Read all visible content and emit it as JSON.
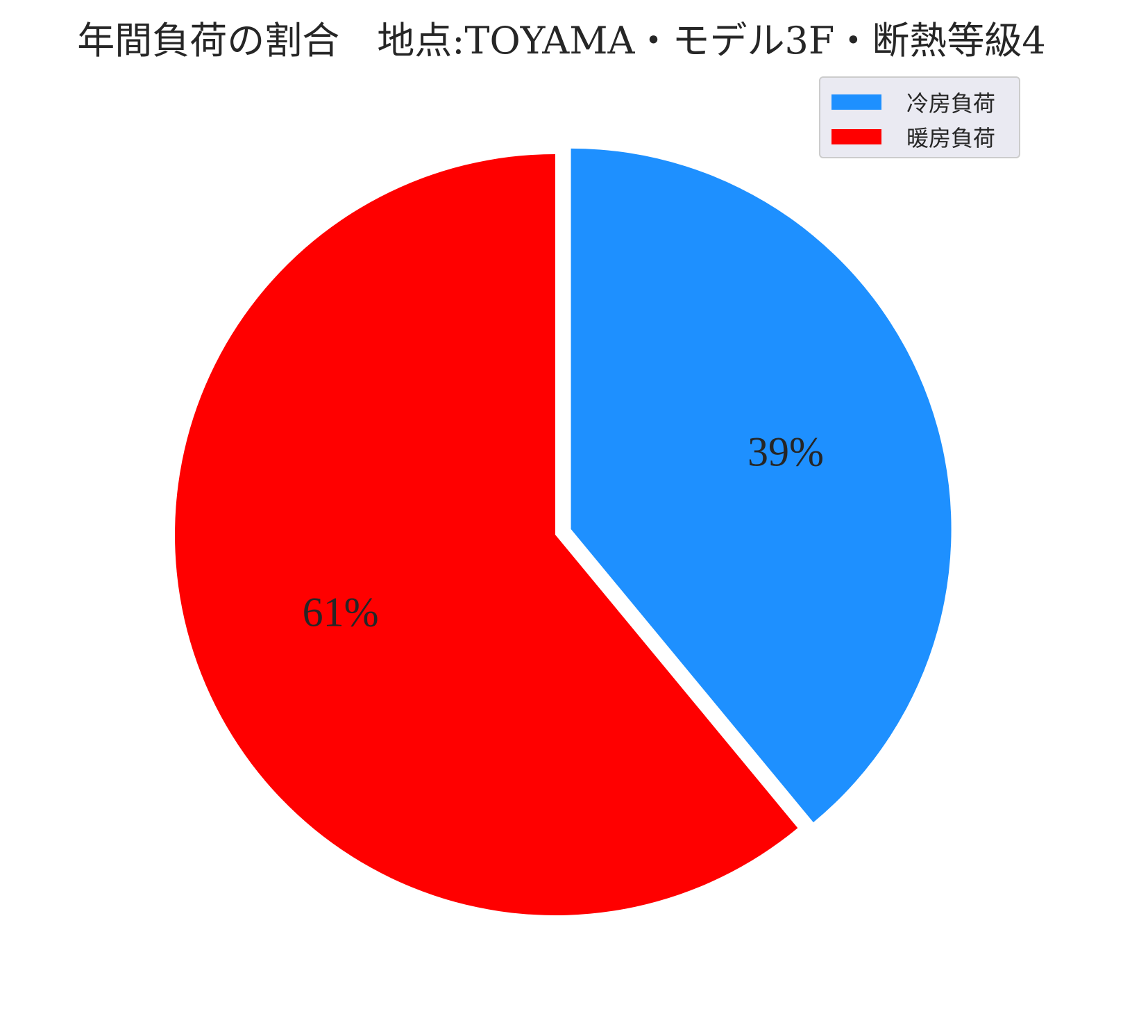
{
  "chart_data": {
    "type": "pie",
    "title": "年間負荷の割合　地点:TOYAMA・モデル3F・断熱等級4",
    "slices": [
      {
        "name": "冷房負荷",
        "value": 39,
        "label": "39%",
        "color": "#1e90ff",
        "exploded": true
      },
      {
        "name": "暖房負荷",
        "value": 61,
        "label": "61%",
        "color": "#ff0000",
        "exploded": false
      }
    ],
    "start_angle": "top, clockwise",
    "legend_position": "top-right"
  }
}
